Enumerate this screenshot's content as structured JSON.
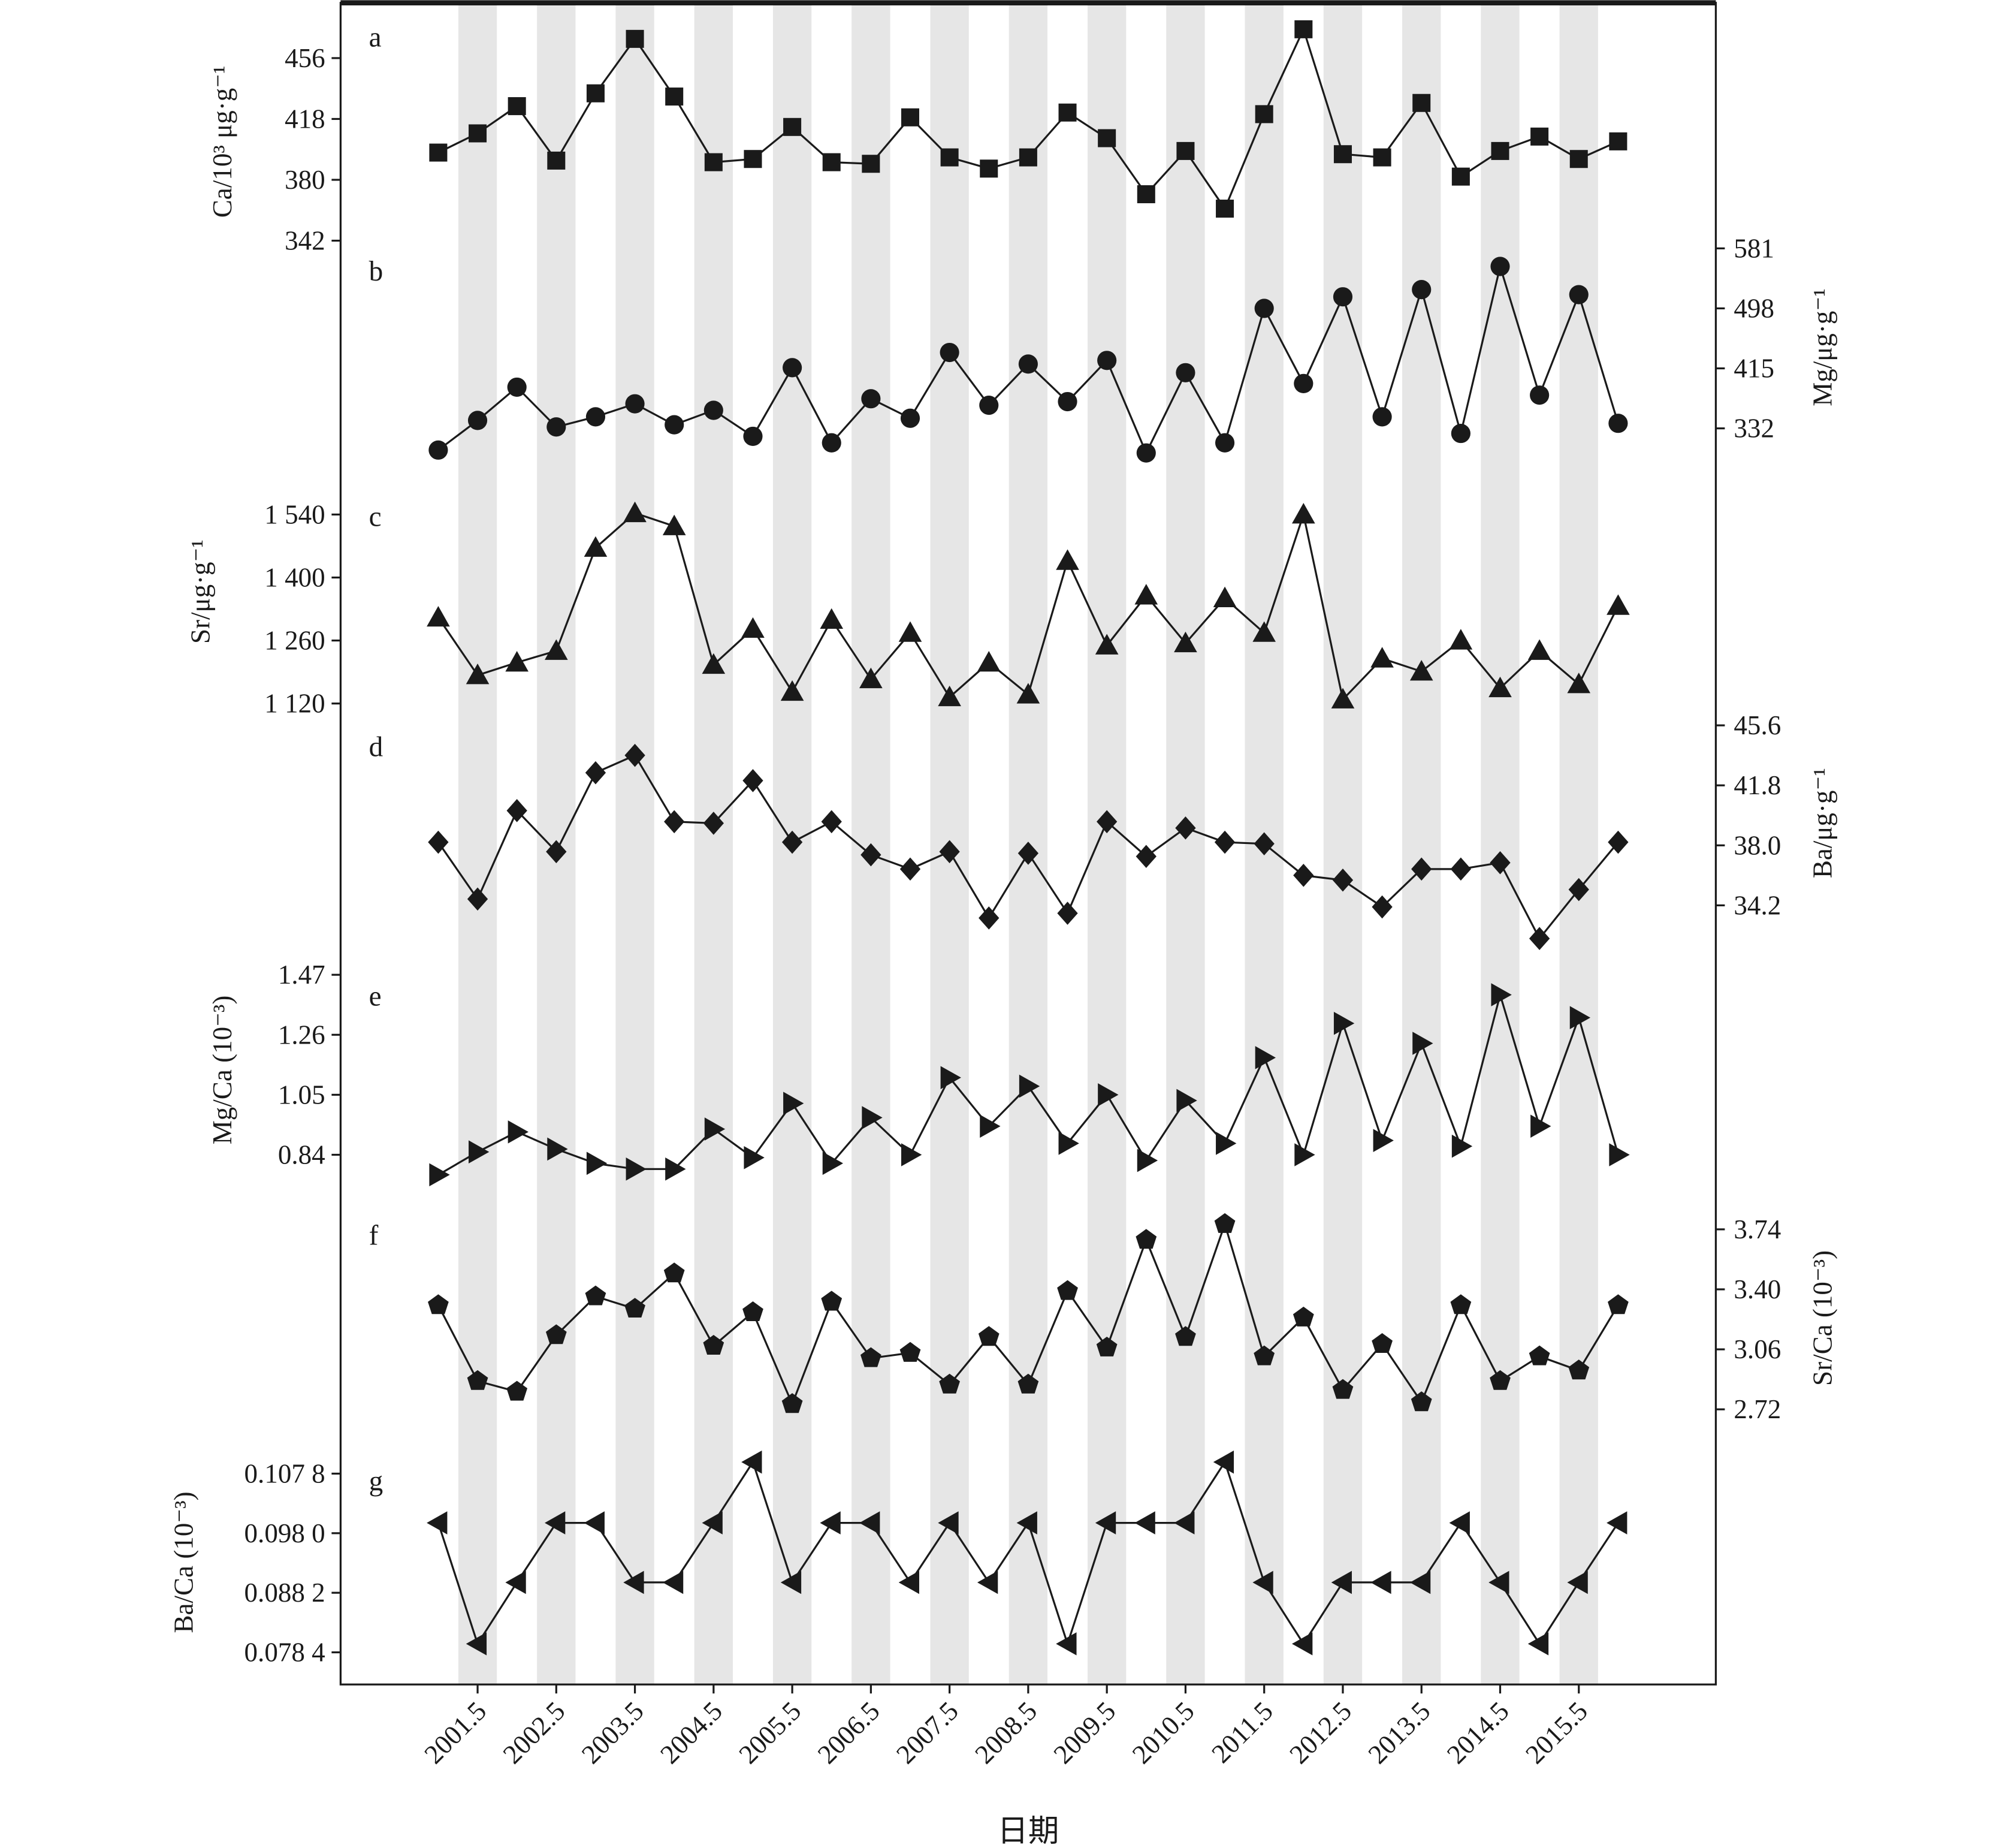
{
  "chart_data": {
    "type": "line",
    "xlabel": "日期",
    "x": [
      2001.0,
      2001.5,
      2002.0,
      2002.5,
      2003.0,
      2003.5,
      2004.0,
      2004.5,
      2005.0,
      2005.5,
      2006.0,
      2006.5,
      2007.0,
      2007.5,
      2008.0,
      2008.5,
      2009.0,
      2009.5,
      2010.0,
      2010.5,
      2011.0,
      2011.5,
      2012.0,
      2012.5,
      2013.0,
      2013.5,
      2014.0,
      2014.5,
      2015.0,
      2015.5,
      2016.0
    ],
    "x_ticks": [
      "2001.5",
      "2002.5",
      "2003.5",
      "2004.5",
      "2005.5",
      "2006.5",
      "2007.5",
      "2008.5",
      "2009.5",
      "2010.5",
      "2011.5",
      "2012.5",
      "2013.5",
      "2014.5",
      "2015.5"
    ],
    "shaded_bands": "alternating grey bands centred on each x.5 tick",
    "band_color": "#e6e6e6",
    "line_color": "#1a1a1a",
    "panels": [
      {
        "letter": "a",
        "ylabel": "Ca/10³ μg·g⁻¹",
        "axis_side": "left",
        "marker": "square",
        "ticks": [
          456,
          418,
          380,
          342
        ],
        "tick_labels": [
          "456",
          "418",
          "380",
          "342"
        ],
        "values": [
          397,
          409,
          426,
          392,
          434,
          468,
          432,
          391,
          393,
          413,
          391,
          390,
          419,
          394,
          387,
          394,
          422,
          406,
          371,
          398,
          362,
          421,
          474,
          396,
          394,
          428,
          382,
          398,
          407,
          393,
          404
        ]
      },
      {
        "letter": "b",
        "ylabel": "Mg/μg·g⁻¹",
        "axis_side": "right",
        "marker": "circle",
        "ticks": [
          581,
          498,
          415,
          332
        ],
        "tick_labels": [
          "581",
          "498",
          "415",
          "332"
        ],
        "values": [
          302,
          343,
          389,
          334,
          348,
          366,
          337,
          357,
          321,
          416,
          312,
          373,
          346,
          437,
          364,
          421,
          369,
          426,
          298,
          409,
          312,
          498,
          394,
          514,
          348,
          524,
          325,
          556,
          378,
          517,
          339
        ]
      },
      {
        "letter": "c",
        "ylabel": "Sr/μg·g⁻¹",
        "axis_side": "left",
        "marker": "triangle-up",
        "ticks": [
          1540,
          1400,
          1260,
          1120
        ],
        "tick_labels": [
          "1 540",
          "1 400",
          "1 260",
          "1 120"
        ],
        "values": [
          1311,
          1183,
          1211,
          1237,
          1466,
          1543,
          1514,
          1206,
          1286,
          1146,
          1306,
          1174,
          1277,
          1134,
          1211,
          1140,
          1437,
          1249,
          1360,
          1254,
          1354,
          1277,
          1540,
          1129,
          1220,
          1191,
          1260,
          1154,
          1237,
          1163,
          1337
        ]
      },
      {
        "letter": "d",
        "ylabel": "Ba/μg·g⁻¹",
        "axis_side": "right",
        "marker": "diamond",
        "ticks": [
          45.6,
          41.8,
          38.0,
          34.2
        ],
        "tick_labels": [
          "45.6",
          "41.8",
          "38.0",
          "34.2"
        ],
        "values": [
          38.2,
          34.6,
          40.2,
          37.6,
          42.6,
          43.7,
          39.5,
          39.4,
          42.1,
          38.2,
          39.5,
          37.4,
          36.5,
          37.6,
          33.4,
          37.5,
          33.7,
          39.5,
          37.3,
          39.1,
          38.2,
          38.1,
          36.1,
          35.8,
          34.1,
          36.5,
          36.5,
          36.9,
          32.1,
          35.2,
          38.2
        ]
      },
      {
        "letter": "e",
        "ylabel": "Mg/Ca (10⁻³)",
        "axis_side": "left",
        "marker": "triangle-right",
        "ticks": [
          1.47,
          1.26,
          1.05,
          0.84
        ],
        "tick_labels": [
          "1.47",
          "1.26",
          "1.05",
          "0.84"
        ],
        "values": [
          0.77,
          0.85,
          0.92,
          0.86,
          0.81,
          0.79,
          0.79,
          0.93,
          0.83,
          1.02,
          0.81,
          0.97,
          0.84,
          1.11,
          0.94,
          1.08,
          0.88,
          1.05,
          0.82,
          1.03,
          0.88,
          1.18,
          0.84,
          1.3,
          0.89,
          1.23,
          0.87,
          1.4,
          0.94,
          1.32,
          0.84
        ]
      },
      {
        "letter": "f",
        "ylabel": "Sr/Ca (10⁻³)",
        "axis_side": "right",
        "marker": "pentagon",
        "ticks": [
          3.74,
          3.4,
          3.06,
          2.72
        ],
        "tick_labels": [
          "3.74",
          "3.40",
          "3.06",
          "2.72"
        ],
        "values": [
          3.31,
          2.88,
          2.82,
          3.14,
          3.36,
          3.29,
          3.49,
          3.08,
          3.27,
          2.75,
          3.33,
          3.01,
          3.04,
          2.86,
          3.13,
          2.86,
          3.39,
          3.07,
          3.68,
          3.13,
          3.77,
          3.02,
          3.24,
          2.83,
          3.09,
          2.76,
          3.31,
          2.88,
          3.02,
          2.94,
          3.31
        ]
      },
      {
        "letter": "g",
        "ylabel": "Ba/Ca (10⁻³)",
        "axis_side": "left",
        "marker": "triangle-left",
        "ticks": [
          0.1078,
          0.098,
          0.0882,
          0.0784
        ],
        "tick_labels": [
          "0.107 8",
          "0.098 0",
          "0.088 2",
          "0.078 4"
        ],
        "values": [
          0.0997,
          0.0798,
          0.0899,
          0.0997,
          0.0997,
          0.0899,
          0.0899,
          0.0997,
          0.1097,
          0.0899,
          0.0997,
          0.0997,
          0.0899,
          0.0997,
          0.0899,
          0.0997,
          0.0798,
          0.0997,
          0.0997,
          0.0997,
          0.1097,
          0.0899,
          0.0798,
          0.0899,
          0.0899,
          0.0899,
          0.0997,
          0.0899,
          0.0798,
          0.0899,
          0.0997
        ]
      }
    ]
  }
}
